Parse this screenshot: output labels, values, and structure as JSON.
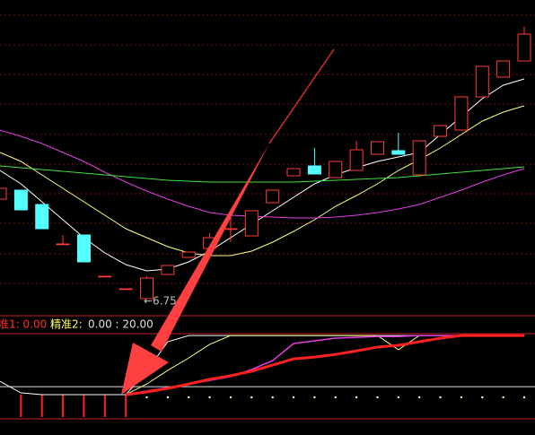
{
  "chart_data": {
    "type": "candlestick",
    "ylim": [
      6.58,
      10.08
    ],
    "open": [
      7.86,
      7.96,
      7.8,
      7.36,
      7.46,
      7.0,
      6.86,
      6.75,
      7.02,
      7.21,
      7.31,
      7.53,
      7.45,
      7.82,
      8.12,
      8.23,
      8.1,
      8.18,
      8.36,
      8.4,
      8.13,
      8.56,
      8.63,
      9.0,
      9.22,
      9.4
    ],
    "high": [
      7.98,
      7.96,
      7.8,
      7.46,
      7.46,
      7.0,
      6.86,
      7.0,
      7.12,
      7.27,
      7.48,
      7.68,
      7.73,
      7.96,
      8.2,
      8.43,
      8.28,
      8.51,
      8.5,
      8.6,
      8.51,
      8.68,
      9.0,
      9.34,
      9.4,
      9.78
    ],
    "low": [
      7.86,
      7.74,
      7.53,
      7.36,
      7.16,
      7.0,
      6.86,
      6.75,
      7.02,
      7.21,
      7.31,
      7.38,
      7.45,
      7.82,
      8.12,
      8.14,
      8.1,
      8.18,
      8.36,
      8.36,
      8.13,
      8.56,
      8.63,
      9.0,
      9.22,
      9.4
    ],
    "close": [
      7.98,
      7.74,
      7.53,
      7.36,
      7.16,
      7.0,
      6.86,
      6.98,
      7.12,
      7.27,
      7.43,
      7.53,
      7.73,
      7.96,
      8.2,
      8.14,
      8.28,
      8.41,
      8.5,
      8.36,
      8.51,
      8.68,
      9.0,
      9.34,
      9.4,
      9.7
    ],
    "up_color": "#ff3c3c",
    "down_color": "#54ffff",
    "annotation": "←6.75",
    "series": [
      {
        "color": "#ffffff",
        "values": [
          8.18,
          8.03,
          7.83,
          7.63,
          7.43,
          7.26,
          7.13,
          7.06,
          7.08,
          7.16,
          7.28,
          7.43,
          7.58,
          7.73,
          7.88,
          8.03,
          8.13,
          8.21,
          8.28,
          8.33,
          8.38,
          8.58,
          8.78,
          8.98,
          9.13,
          9.2
        ]
      },
      {
        "color": "#ffff80",
        "values": [
          8.38,
          8.28,
          8.13,
          7.98,
          7.83,
          7.68,
          7.53,
          7.43,
          7.33,
          7.26,
          7.23,
          7.23,
          7.28,
          7.38,
          7.5,
          7.63,
          7.78,
          7.9,
          8.03,
          8.18,
          8.3,
          8.43,
          8.58,
          8.73,
          8.83,
          8.9
        ]
      },
      {
        "color": "#e040e0",
        "values": [
          8.63,
          8.56,
          8.48,
          8.38,
          8.28,
          8.16,
          8.05,
          7.95,
          7.86,
          7.78,
          7.71,
          7.68,
          7.67,
          7.66,
          7.65,
          7.65,
          7.66,
          7.68,
          7.71,
          7.75,
          7.8,
          7.88,
          7.96,
          8.05,
          8.13,
          8.2
        ]
      },
      {
        "color": "#40e040",
        "values": [
          8.23,
          8.21,
          8.19,
          8.17,
          8.15,
          8.13,
          8.11,
          8.09,
          8.07,
          8.06,
          8.05,
          8.05,
          8.05,
          8.05,
          8.05,
          8.06,
          8.07,
          8.08,
          8.09,
          8.1,
          8.12,
          8.14,
          8.16,
          8.18,
          8.2,
          8.22
        ]
      }
    ],
    "indicator": {
      "label1": "准1: 0.00",
      "label2": "精准2:",
      "label2_value": "0.00 : 20.00",
      "ylim": [
        -8.2,
        26.4
      ],
      "reference": 2.7,
      "lines": [
        {
          "color": "#ffffff",
          "width": 1,
          "values": [
            4.5,
            0.6,
            0,
            0,
            0,
            0,
            0,
            7.9,
            17.9,
            20,
            20,
            20,
            20,
            20,
            20,
            20,
            20,
            20,
            20,
            20,
            20,
            20,
            20,
            20,
            20,
            20
          ]
        },
        {
          "color": "#ffff80",
          "width": 1,
          "values": [
            null,
            null,
            null,
            null,
            null,
            null,
            0,
            3.6,
            8.2,
            12.4,
            17,
            20,
            20,
            20,
            20,
            20,
            20,
            20,
            20,
            15.2,
            20,
            20,
            20,
            20,
            20,
            20
          ]
        },
        {
          "color": "#e040e0",
          "width": 1.5,
          "values": [
            null,
            null,
            null,
            null,
            null,
            null,
            0,
            1.2,
            2.4,
            3.6,
            4.8,
            6.1,
            8.5,
            11.5,
            17.3,
            18.2,
            19.1,
            19.4,
            19.7,
            19.7,
            20,
            20,
            20,
            20,
            20,
            20
          ]
        },
        {
          "color": "#ff2020",
          "width": 3,
          "values": [
            null,
            null,
            null,
            null,
            null,
            null,
            0,
            0.9,
            2.1,
            3.6,
            5.2,
            6.4,
            7.9,
            10,
            12.1,
            12.7,
            13.6,
            14.8,
            16.1,
            16.7,
            17.9,
            19.1,
            20,
            20,
            20,
            20
          ]
        }
      ],
      "bars": {
        "color": "#ff2020",
        "values": [
          null,
          -7.6,
          -7.6,
          -7.6,
          -7.6,
          -7.6,
          -7.6,
          null,
          null,
          null,
          null,
          null,
          null,
          null,
          null,
          null,
          null,
          null,
          null,
          null,
          null,
          null,
          null,
          null,
          null,
          null
        ]
      },
      "dots": {
        "color": "#ffffc0",
        "values": [
          null,
          null,
          null,
          null,
          null,
          null,
          null,
          -0.9,
          -0.9,
          -0.9,
          -0.9,
          -0.9,
          -0.9,
          -0.9,
          -0.9,
          -0.9,
          -0.9,
          -0.9,
          -0.9,
          -0.9,
          -0.9,
          -0.9,
          -0.9,
          -0.9,
          -0.9,
          -0.9
        ]
      }
    }
  }
}
